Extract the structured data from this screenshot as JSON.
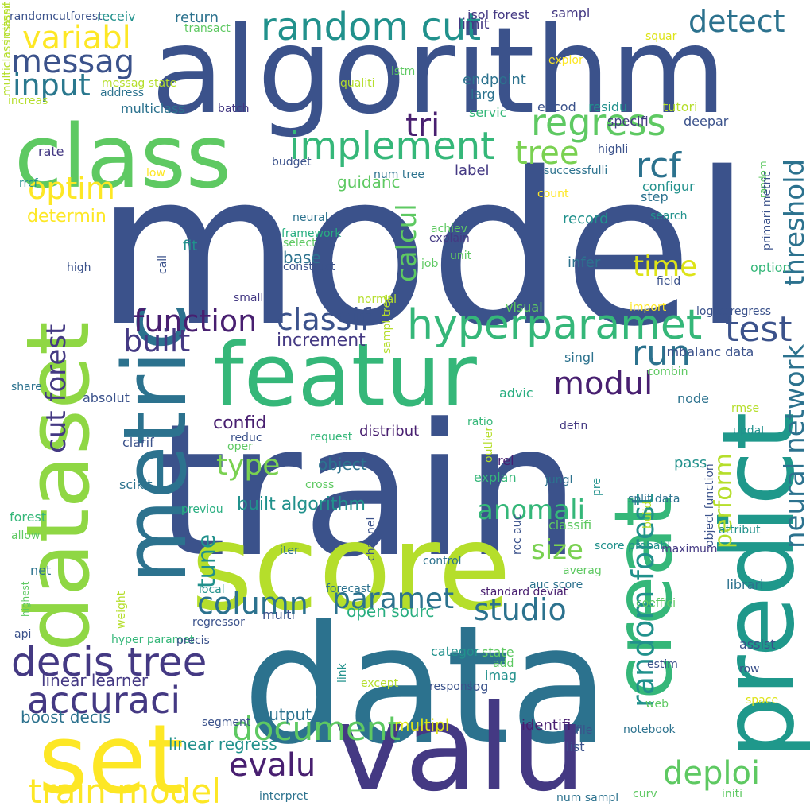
{
  "palette": {
    "dark_blue": "#3b528b",
    "navy": "#443983",
    "purple": "#481f70",
    "teal_blue": "#2c728e",
    "teal": "#21918c",
    "green_teal": "#28ae80",
    "green": "#5ec962",
    "light_green": "#addc30",
    "yellow": "#fde725"
  },
  "words": [
    {
      "text": "model",
      "size": 265,
      "color": "#3b528b",
      "rot": 0
    },
    {
      "text": "train",
      "size": 230,
      "color": "#3b528b",
      "rot": 0
    },
    {
      "text": "data",
      "size": 205,
      "color": "#2c728e",
      "rot": 0
    },
    {
      "text": "algorithm",
      "size": 150,
      "color": "#3b528b",
      "rot": 0
    },
    {
      "text": "score",
      "size": 150,
      "color": "#b5de2b",
      "rot": 0
    },
    {
      "text": "valu",
      "size": 150,
      "color": "#443983",
      "rot": 0
    },
    {
      "text": "class",
      "size": 110,
      "color": "#5ec962",
      "rot": 0
    },
    {
      "text": "featur",
      "size": 110,
      "color": "#35b779",
      "rot": 0
    },
    {
      "text": "set",
      "size": 120,
      "color": "#fde725",
      "rot": 0
    },
    {
      "text": "predict",
      "size": 125,
      "color": "#1f988b",
      "rot": -90
    },
    {
      "text": "dataset",
      "size": 110,
      "color": "#8fd744",
      "rot": -90
    },
    {
      "text": "metric",
      "size": 110,
      "color": "#2c728e",
      "rot": -90
    },
    {
      "text": "creat",
      "size": 100,
      "color": "#35b779",
      "rot": -90
    },
    {
      "text": "random cut",
      "size": 48,
      "color": "#21918c",
      "rot": 0
    },
    {
      "text": "detect",
      "size": 38,
      "color": "#2c728e",
      "rot": 0
    },
    {
      "text": "variabl",
      "size": 40,
      "color": "#fde725",
      "rot": 0
    },
    {
      "text": "messag",
      "size": 40,
      "color": "#3b528b",
      "rot": 0
    },
    {
      "text": "input",
      "size": 38,
      "color": "#2a788e",
      "rot": 0
    },
    {
      "text": "tri",
      "size": 40,
      "color": "#481f70",
      "rot": 0
    },
    {
      "text": "regress",
      "size": 46,
      "color": "#5ec962",
      "rot": 0
    },
    {
      "text": "implement",
      "size": 48,
      "color": "#35b779",
      "rot": 0
    },
    {
      "text": "tree",
      "size": 40,
      "color": "#7ad151",
      "rot": 0
    },
    {
      "text": "rcf",
      "size": 44,
      "color": "#2c728e",
      "rot": 0
    },
    {
      "text": "optim",
      "size": 38,
      "color": "#fde725",
      "rot": 0
    },
    {
      "text": "hyperparamet",
      "size": 52,
      "color": "#35b779",
      "rot": 0
    },
    {
      "text": "function",
      "size": 38,
      "color": "#481f70",
      "rot": 0
    },
    {
      "text": "classif",
      "size": 38,
      "color": "#3b528b",
      "rot": 0
    },
    {
      "text": "test",
      "size": 44,
      "color": "#3b528b",
      "rot": 0
    },
    {
      "text": "run",
      "size": 44,
      "color": "#2c728e",
      "rot": 0
    },
    {
      "text": "built",
      "size": 38,
      "color": "#443983",
      "rot": 0
    },
    {
      "text": "time",
      "size": 36,
      "color": "#dde318",
      "rot": 0
    },
    {
      "text": "modul",
      "size": 40,
      "color": "#481f70",
      "rot": 0
    },
    {
      "text": "type",
      "size": 36,
      "color": "#7ad151",
      "rot": 0
    },
    {
      "text": "anomali",
      "size": 34,
      "color": "#35b779",
      "rot": 0
    },
    {
      "text": "column",
      "size": 38,
      "color": "#2c728e",
      "rot": 0
    },
    {
      "text": "paramet",
      "size": 36,
      "color": "#2c728e",
      "rot": 0
    },
    {
      "text": "size",
      "size": 34,
      "color": "#7ad151",
      "rot": 0
    },
    {
      "text": "studio",
      "size": 38,
      "color": "#2c728e",
      "rot": 0
    },
    {
      "text": "decis tree",
      "size": 50,
      "color": "#443983",
      "rot": 0
    },
    {
      "text": "accuraci",
      "size": 46,
      "color": "#443983",
      "rot": 0
    },
    {
      "text": "evalu",
      "size": 40,
      "color": "#481f70",
      "rot": 0
    },
    {
      "text": "document",
      "size": 42,
      "color": "#5ec962",
      "rot": 0
    },
    {
      "text": "deploi",
      "size": 40,
      "color": "#5ec962",
      "rot": 0
    },
    {
      "text": "set",
      "size": 1,
      "color": "#ffffff",
      "rot": 0
    },
    {
      "text": "train model",
      "size": 42,
      "color": "#fde725",
      "rot": 0
    },
    {
      "text": "threshold",
      "size": 34,
      "color": "#2c728e",
      "rot": -90
    },
    {
      "text": "neural network",
      "size": 34,
      "color": "#2c728e",
      "rot": -90
    },
    {
      "text": "cut forest",
      "size": 34,
      "color": "#443983",
      "rot": -90
    },
    {
      "text": "random forest",
      "size": 38,
      "color": "#21918c",
      "rot": -90
    },
    {
      "text": "calcul",
      "size": 34,
      "color": "#5ec962",
      "rot": -90
    },
    {
      "text": "perform",
      "size": 30,
      "color": "#b5de2b",
      "rot": -90
    },
    {
      "text": "tune",
      "size": 30,
      "color": "#21918c",
      "rot": -90
    },
    {
      "text": "increment",
      "size": 22,
      "color": "#443983",
      "rot": 0
    },
    {
      "text": "confid",
      "size": 22,
      "color": "#481f70",
      "rot": 0
    },
    {
      "text": "base",
      "size": 20,
      "color": "#2c728e",
      "rot": 0
    },
    {
      "text": "determin",
      "size": 22,
      "color": "#fde725",
      "rot": 0
    },
    {
      "text": "guidanc",
      "size": 20,
      "color": "#5ec962",
      "rot": 0
    },
    {
      "text": "label",
      "size": 18,
      "color": "#443983",
      "rot": 0
    },
    {
      "text": "distribut",
      "size": 18,
      "color": "#481f70",
      "rot": 0
    },
    {
      "text": "object",
      "size": 20,
      "color": "#2c728e",
      "rot": 0
    },
    {
      "text": "built algorithm",
      "size": 22,
      "color": "#21918c",
      "rot": 0
    },
    {
      "text": "linear learner",
      "size": 20,
      "color": "#443983",
      "rot": 0
    },
    {
      "text": "boost decis",
      "size": 20,
      "color": "#2c728e",
      "rot": 0
    },
    {
      "text": "linear regress",
      "size": 20,
      "color": "#21918c",
      "rot": 0
    },
    {
      "text": "output",
      "size": 20,
      "color": "#2c728e",
      "rot": 0
    },
    {
      "text": "open sourc",
      "size": 20,
      "color": "#28ae80",
      "rot": 0
    },
    {
      "text": "multipl",
      "size": 20,
      "color": "#dde318",
      "rot": 0
    },
    {
      "text": "identifi",
      "size": 18,
      "color": "#481f70",
      "rot": 0
    },
    {
      "text": "endpoint",
      "size": 18,
      "color": "#2c728e",
      "rot": 0
    },
    {
      "text": "limit",
      "size": 18,
      "color": "#443983",
      "rot": 0
    },
    {
      "text": "return",
      "size": 18,
      "color": "#2c728e",
      "rot": 0
    },
    {
      "text": "receiv",
      "size": 16,
      "color": "#21918c",
      "rot": 0
    },
    {
      "text": "sampl",
      "size": 16,
      "color": "#443983",
      "rot": 0
    },
    {
      "text": "isol forest",
      "size": 16,
      "color": "#443983",
      "rot": 0
    },
    {
      "text": "multiclass",
      "size": 16,
      "color": "#2c728e",
      "rot": 0
    },
    {
      "text": "residu",
      "size": 16,
      "color": "#21918c",
      "rot": 0
    },
    {
      "text": "encod",
      "size": 16,
      "color": "#3b528b",
      "rot": 0
    },
    {
      "text": "tutori",
      "size": 16,
      "color": "#b5de2b",
      "rot": 0
    },
    {
      "text": "specifi",
      "size": 16,
      "color": "#443983",
      "rot": 0
    },
    {
      "text": "deepar",
      "size": 16,
      "color": "#3b528b",
      "rot": 0
    },
    {
      "text": "servic",
      "size": 16,
      "color": "#35b779",
      "rot": 0
    },
    {
      "text": "larg",
      "size": 16,
      "color": "#2c728e",
      "rot": 0
    },
    {
      "text": "rate",
      "size": 16,
      "color": "#443983",
      "rot": 0
    },
    {
      "text": "budget",
      "size": 14,
      "color": "#3b528b",
      "rot": 0
    },
    {
      "text": "successfulli",
      "size": 14,
      "color": "#2c728e",
      "rot": 0
    },
    {
      "text": "num tree",
      "size": 14,
      "color": "#2c728e",
      "rot": 0
    },
    {
      "text": "configur",
      "size": 16,
      "color": "#21918c",
      "rot": 0
    },
    {
      "text": "step",
      "size": 16,
      "color": "#2c728e",
      "rot": 0
    },
    {
      "text": "record",
      "size": 18,
      "color": "#21918c",
      "rot": 0
    },
    {
      "text": "search",
      "size": 14,
      "color": "#21918c",
      "rot": 0
    },
    {
      "text": "neural",
      "size": 14,
      "color": "#2c728e",
      "rot": 0
    },
    {
      "text": "framework",
      "size": 14,
      "color": "#28ae80",
      "rot": 0
    },
    {
      "text": "select",
      "size": 14,
      "color": "#5ec962",
      "rot": 0
    },
    {
      "text": "achiev",
      "size": 14,
      "color": "#5ec962",
      "rot": 0
    },
    {
      "text": "explain",
      "size": 14,
      "color": "#443983",
      "rot": 0
    },
    {
      "text": "fit",
      "size": 18,
      "color": "#21918c",
      "rot": 0
    },
    {
      "text": "infer",
      "size": 18,
      "color": "#2c728e",
      "rot": 0
    },
    {
      "text": "construct",
      "size": 14,
      "color": "#3b528b",
      "rot": 0
    },
    {
      "text": "job",
      "size": 14,
      "color": "#5ec962",
      "rot": 0
    },
    {
      "text": "unit",
      "size": 14,
      "color": "#5ec962",
      "rot": 0
    },
    {
      "text": "option",
      "size": 16,
      "color": "#35b779",
      "rot": 0
    },
    {
      "text": "field",
      "size": 14,
      "color": "#3b528b",
      "rot": 0
    },
    {
      "text": "high",
      "size": 14,
      "color": "#3b528b",
      "rot": 0
    },
    {
      "text": "small",
      "size": 14,
      "color": "#443983",
      "rot": 0
    },
    {
      "text": "normal",
      "size": 14,
      "color": "#b5de2b",
      "rot": 0
    },
    {
      "text": "visual",
      "size": 16,
      "color": "#5ec962",
      "rot": 0
    },
    {
      "text": "import",
      "size": 14,
      "color": "#fde725",
      "rot": 0
    },
    {
      "text": "logist regress",
      "size": 14,
      "color": "#3b528b",
      "rot": 0
    },
    {
      "text": "imbalanc data",
      "size": 16,
      "color": "#3b528b",
      "rot": 0
    },
    {
      "text": "singl",
      "size": 16,
      "color": "#2c728e",
      "rot": 0
    },
    {
      "text": "combin",
      "size": 14,
      "color": "#5ec962",
      "rot": 0
    },
    {
      "text": "share",
      "size": 14,
      "color": "#2c728e",
      "rot": 0
    },
    {
      "text": "absolut",
      "size": 16,
      "color": "#3b528b",
      "rot": 0
    },
    {
      "text": "advic",
      "size": 16,
      "color": "#28ae80",
      "rot": 0
    },
    {
      "text": "node",
      "size": 16,
      "color": "#2c728e",
      "rot": 0
    },
    {
      "text": "rmse",
      "size": 14,
      "color": "#b5de2b",
      "rot": 0
    },
    {
      "text": "ratio",
      "size": 14,
      "color": "#35b779",
      "rot": 0
    },
    {
      "text": "defin",
      "size": 14,
      "color": "#443983",
      "rot": 0
    },
    {
      "text": "updat",
      "size": 14,
      "color": "#21918c",
      "rot": 0
    },
    {
      "text": "clarif",
      "size": 16,
      "color": "#3b528b",
      "rot": 0
    },
    {
      "text": "reduc",
      "size": 14,
      "color": "#3b528b",
      "rot": 0
    },
    {
      "text": "request",
      "size": 14,
      "color": "#35b779",
      "rot": 0
    },
    {
      "text": "oper",
      "size": 14,
      "color": "#5ec962",
      "rot": 0
    },
    {
      "text": "rel",
      "size": 16,
      "color": "#481f70",
      "rot": 0
    },
    {
      "text": "pass",
      "size": 18,
      "color": "#21918c",
      "rot": 0
    },
    {
      "text": "explan",
      "size": 16,
      "color": "#35b779",
      "rot": 0
    },
    {
      "text": "jungl",
      "size": 14,
      "color": "#2c728e",
      "rot": 0
    },
    {
      "text": "cross",
      "size": 14,
      "color": "#5ec962",
      "rot": 0
    },
    {
      "text": "split data",
      "size": 14,
      "color": "#2c728e",
      "rot": 0
    },
    {
      "text": "scikit",
      "size": 16,
      "color": "#2c728e",
      "rot": 0
    },
    {
      "text": "previou",
      "size": 14,
      "color": "#28ae80",
      "rot": 0
    },
    {
      "text": "forest",
      "size": 16,
      "color": "#35b779",
      "rot": 0
    },
    {
      "text": "score probabl",
      "size": 14,
      "color": "#21918c",
      "rot": 0
    },
    {
      "text": "attribut",
      "size": 14,
      "color": "#21918c",
      "rot": 0
    },
    {
      "text": "classifi",
      "size": 16,
      "color": "#5ec962",
      "rot": 0
    },
    {
      "text": "maximum",
      "size": 14,
      "color": "#443983",
      "rot": 0
    },
    {
      "text": "allow",
      "size": 14,
      "color": "#5ec962",
      "rot": 0
    },
    {
      "text": "iter",
      "size": 14,
      "color": "#2c728e",
      "rot": 0
    },
    {
      "text": "control",
      "size": 14,
      "color": "#2c728e",
      "rot": 0
    },
    {
      "text": "averag",
      "size": 14,
      "color": "#5ec962",
      "rot": 0
    },
    {
      "text": "net",
      "size": 16,
      "color": "#2c728e",
      "rot": 0
    },
    {
      "text": "auc score",
      "size": 14,
      "color": "#2c728e",
      "rot": 0
    },
    {
      "text": "librari",
      "size": 16,
      "color": "#2c728e",
      "rot": 0
    },
    {
      "text": "local",
      "size": 14,
      "color": "#21918c",
      "rot": 0
    },
    {
      "text": "forecast",
      "size": 14,
      "color": "#2c728e",
      "rot": 0
    },
    {
      "text": "standard deviat",
      "size": 14,
      "color": "#481f70",
      "rot": 0
    },
    {
      "text": "coeffici",
      "size": 14,
      "color": "#5ec962",
      "rot": 0
    },
    {
      "text": "regressor",
      "size": 14,
      "color": "#3b528b",
      "rot": 0
    },
    {
      "text": "multi",
      "size": 16,
      "color": "#3b528b",
      "rot": 0
    },
    {
      "text": "api",
      "size": 14,
      "color": "#3b528b",
      "rot": 0
    },
    {
      "text": "hyper paramet",
      "size": 14,
      "color": "#35b779",
      "rot": 0
    },
    {
      "text": "precis",
      "size": 14,
      "color": "#3b528b",
      "rot": 0
    },
    {
      "text": "assist",
      "size": 16,
      "color": "#3b528b",
      "rot": 0
    },
    {
      "text": "estim",
      "size": 14,
      "color": "#3b528b",
      "rot": 0
    },
    {
      "text": "state",
      "size": 16,
      "color": "#5ec962",
      "rot": 0
    },
    {
      "text": "categor",
      "size": 16,
      "color": "#21918c",
      "rot": 0
    },
    {
      "text": "add",
      "size": 14,
      "color": "#5ec962",
      "rot": 0
    },
    {
      "text": "row",
      "size": 14,
      "color": "#3b528b",
      "rot": 0
    },
    {
      "text": "imag",
      "size": 16,
      "color": "#21918c",
      "rot": 0
    },
    {
      "text": "except",
      "size": 14,
      "color": "#b5de2b",
      "rot": 0
    },
    {
      "text": "respons",
      "size": 14,
      "color": "#3b528b",
      "rot": 0
    },
    {
      "text": "log",
      "size": 16,
      "color": "#3b528b",
      "rot": 0
    },
    {
      "text": "web",
      "size": 14,
      "color": "#5ec962",
      "rot": 0
    },
    {
      "text": "space",
      "size": 14,
      "color": "#dde318",
      "rot": 0
    },
    {
      "text": "segment",
      "size": 14,
      "color": "#3b528b",
      "rot": 0
    },
    {
      "text": "notebook",
      "size": 14,
      "color": "#2c728e",
      "rot": 0
    },
    {
      "text": "file",
      "size": 14,
      "color": "#3b528b",
      "rot": 0
    },
    {
      "text": "list",
      "size": 16,
      "color": "#3b528b",
      "rot": 0
    },
    {
      "text": "curv",
      "size": 14,
      "color": "#5ec962",
      "rot": 0
    },
    {
      "text": "initi",
      "size": 14,
      "color": "#5ec962",
      "rot": 0
    },
    {
      "text": "interpret",
      "size": 14,
      "color": "#2c728e",
      "rot": 0
    },
    {
      "text": "num sampl",
      "size": 14,
      "color": "#2c728e",
      "rot": 0
    },
    {
      "text": "randomcutforest",
      "size": 14,
      "color": "#3b528b",
      "rot": 0
    },
    {
      "text": "transact",
      "size": 14,
      "color": "#5ec962",
      "rot": 0
    },
    {
      "text": "messag state",
      "size": 14,
      "color": "#b5de2b",
      "rot": 0
    },
    {
      "text": "address",
      "size": 14,
      "color": "#2c728e",
      "rot": 0
    },
    {
      "text": "increas",
      "size": 14,
      "color": "#b5de2b",
      "rot": 0
    },
    {
      "text": "qualiti",
      "size": 14,
      "color": "#b5de2b",
      "rot": 0
    },
    {
      "text": "batch",
      "size": 14,
      "color": "#443983",
      "rot": 0
    },
    {
      "text": "lstm",
      "size": 14,
      "color": "#5ec962",
      "rot": 0
    },
    {
      "text": "explor",
      "size": 14,
      "color": "#fde725",
      "rot": 0
    },
    {
      "text": "low",
      "size": 14,
      "color": "#fde725",
      "rot": 0
    },
    {
      "text": "highli",
      "size": 14,
      "color": "#3b528b",
      "rot": 0
    },
    {
      "text": "count",
      "size": 14,
      "color": "#fde725",
      "rot": 0
    },
    {
      "text": "squar",
      "size": 14,
      "color": "#dde318",
      "rot": 0
    },
    {
      "text": "rrcf",
      "size": 14,
      "color": "#21918c",
      "rot": 0
    },
    {
      "text": "call",
      "size": 14,
      "color": "#3b528b",
      "rot": -90
    },
    {
      "text": "random",
      "size": 12,
      "color": "#5ec962",
      "rot": -90
    },
    {
      "text": "primari metric",
      "size": 14,
      "color": "#3b528b",
      "rot": -90
    },
    {
      "text": "sampl tree",
      "size": 14,
      "color": "#b5de2b",
      "rot": -90
    },
    {
      "text": "outlier",
      "size": 14,
      "color": "#b5de2b",
      "rot": -90
    },
    {
      "text": "pre",
      "size": 14,
      "color": "#21918c",
      "rot": -90
    },
    {
      "text": "build",
      "size": 14,
      "color": "#b5de2b",
      "rot": -90
    },
    {
      "text": "channel",
      "size": 14,
      "color": "#3b528b",
      "rot": -90
    },
    {
      "text": "roc auc",
      "size": 14,
      "color": "#3b528b",
      "rot": -90
    },
    {
      "text": "link",
      "size": 14,
      "color": "#21918c",
      "rot": -90
    },
    {
      "text": "weight",
      "size": 14,
      "color": "#b5de2b",
      "rot": -90
    },
    {
      "text": "highest",
      "size": 12,
      "color": "#5ec962",
      "rot": -90
    },
    {
      "text": "object function",
      "size": 14,
      "color": "#3b528b",
      "rot": -90
    },
    {
      "text": "instanc",
      "size": 14,
      "color": "#b5de2b",
      "rot": -90
    },
    {
      "text": "multiclass classif",
      "size": 14,
      "color": "#b5de2b",
      "rot": -90
    }
  ]
}
